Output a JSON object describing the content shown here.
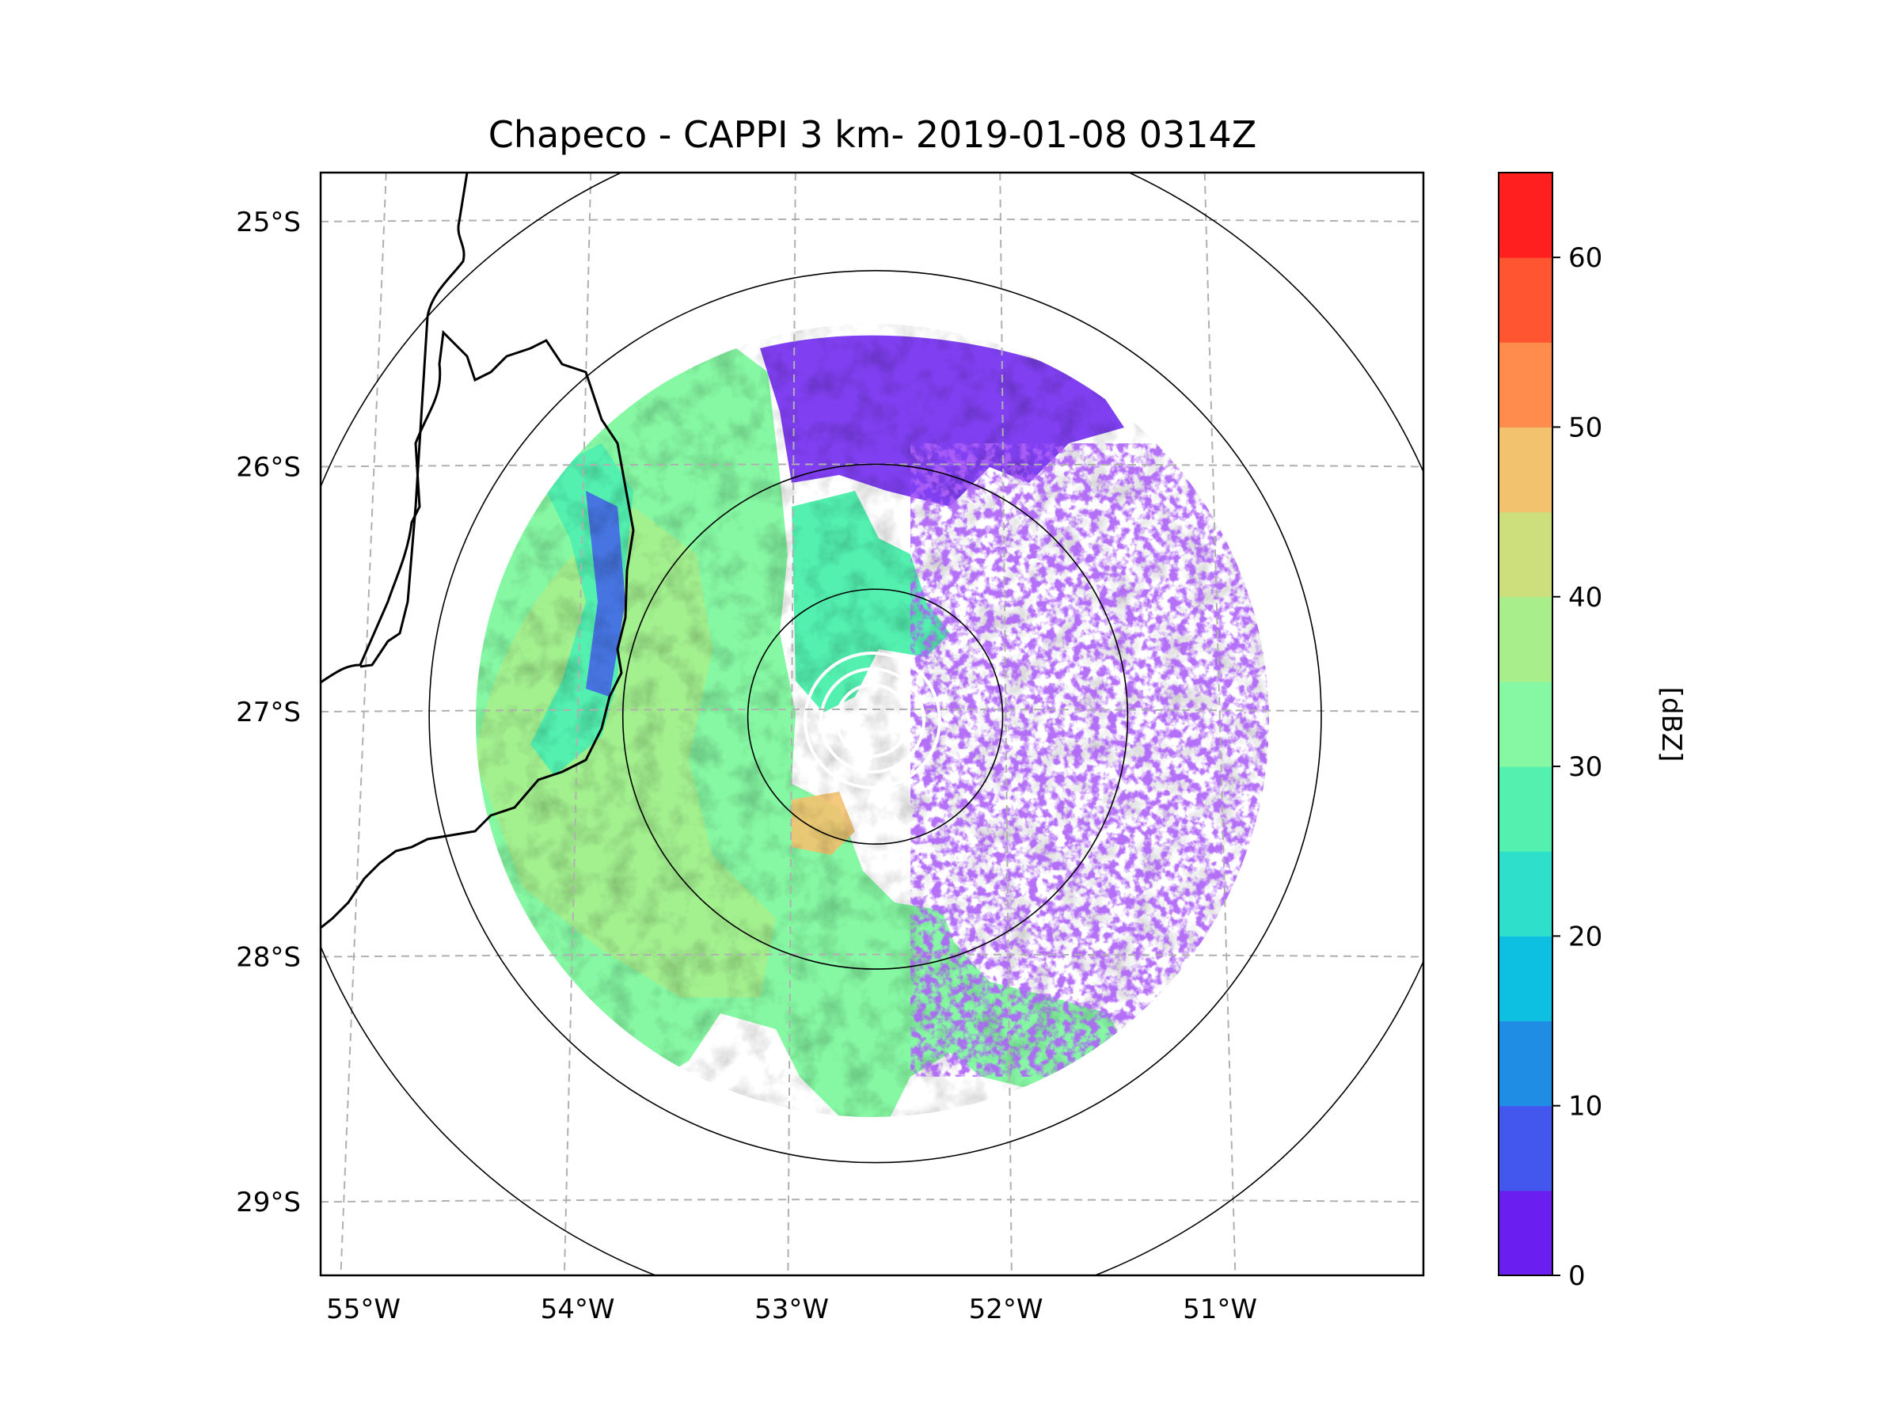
{
  "title": "Chapeco - CAPPI 3 km- 2019-01-08 0314Z",
  "colorbar": {
    "label": "[dBZ]",
    "ticks": [
      "0",
      "10",
      "20",
      "30",
      "40",
      "50",
      "60"
    ],
    "tick_values": [
      0,
      10,
      20,
      30,
      40,
      50,
      60
    ],
    "range": [
      0,
      65
    ],
    "step": 5,
    "colors": [
      "#6a1ff0",
      "#4356ee",
      "#1f8de4",
      "#0dbfe0",
      "#2ee0cc",
      "#53f0b0",
      "#86f8a3",
      "#a8ef8c",
      "#cdde7c",
      "#f3c26f",
      "#ff8c4c",
      "#ff5631",
      "#ff1f1f"
    ]
  },
  "map": {
    "lat_labels": [
      "25°S",
      "26°S",
      "27°S",
      "28°S",
      "29°S"
    ],
    "lon_labels": [
      "55°W",
      "54°W",
      "53°W",
      "52°W",
      "51°W"
    ],
    "lat_values": [
      -25,
      -26,
      -27,
      -28,
      -29
    ],
    "lon_values": [
      -55,
      -54,
      -53,
      -52,
      -51
    ],
    "extent": {
      "lon_min": -55.2,
      "lon_max": -50.05,
      "lat_min": -29.3,
      "lat_max": -24.8
    },
    "radar_site": {
      "name": "Chapeco",
      "lon": -52.61,
      "lat": -27.02
    },
    "range_rings_deg": [
      0.52,
      1.03,
      1.82,
      2.45
    ]
  },
  "chart_data": {
    "type": "heatmap",
    "title": "Chapeco - CAPPI 3 km- 2019-01-08 0314Z",
    "variable": "Reflectivity",
    "units": "dBZ",
    "colorbar_range": [
      0,
      65
    ],
    "colorbar_ticks": [
      0,
      10,
      20,
      30,
      40,
      50,
      60
    ],
    "xlabel": "",
    "ylabel": "",
    "x_ticks": [
      "55°W",
      "54°W",
      "53°W",
      "52°W",
      "51°W"
    ],
    "y_ticks": [
      "25°S",
      "26°S",
      "27°S",
      "28°S",
      "29°S"
    ],
    "grid": true
  }
}
